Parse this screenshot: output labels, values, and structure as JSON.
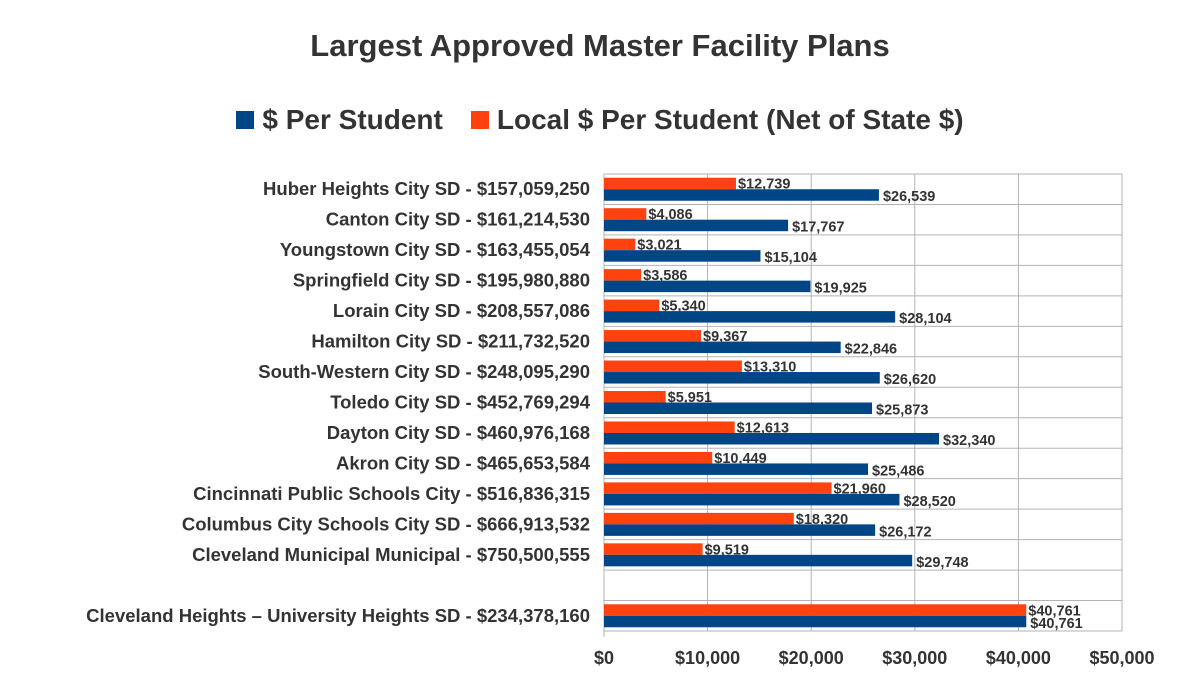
{
  "chart_data": {
    "type": "bar",
    "orientation": "horizontal",
    "title": "Largest Approved Master Facility Plans",
    "categories": [
      "Huber Heights City SD - $157,059,250",
      "Canton City SD - $161,214,530",
      "Youngstown City SD - $163,455,054",
      "Springfield City SD - $195,980,880",
      "Lorain City SD - $208,557,086",
      "Hamilton City SD - $211,732,520",
      "South-Western City SD - $248,095,290",
      "Toledo City SD - $452,769,294",
      "Dayton City SD - $460,976,168",
      "Akron City SD - $465,653,584",
      "Cincinnati Public Schools City - $516,836,315",
      "Columbus City Schools City SD - $666,913,532",
      "Cleveland Municipal Municipal - $750,500,555",
      "",
      "Cleveland Heights – University Heights SD - $234,378,160"
    ],
    "series": [
      {
        "name": "$ Per Student",
        "color": "#004586",
        "values": [
          26539,
          17767,
          15104,
          19925,
          28104,
          22846,
          26620,
          25873,
          32340,
          25486,
          28520,
          26172,
          29748,
          null,
          40761
        ],
        "labels": [
          "$26,539",
          "$17,767",
          "$15,104",
          "$19,925",
          "$28,104",
          "$22,846",
          "$26,620",
          "$25,873",
          "$32,340",
          "$25,486",
          "$28,520",
          "$26,172",
          "$29,748",
          "",
          "$40,761"
        ]
      },
      {
        "name": "Local $ Per Student (Net of State $)",
        "color": "#ff420e",
        "values": [
          12739,
          4086,
          3021,
          3586,
          5340,
          9367,
          13310,
          5951,
          12613,
          10449,
          21960,
          18320,
          9519,
          null,
          40761
        ],
        "labels": [
          "$12,739",
          "$4,086",
          "$3,021",
          "$3,586",
          "$5,340",
          "$9,367",
          "$13,310",
          "$5,951",
          "$12,613",
          "$10,449",
          "$21,960",
          "$18,320",
          "$9,519",
          "",
          "$40,761"
        ]
      }
    ],
    "xlim": [
      0,
      50000
    ],
    "xticks": [
      0,
      10000,
      20000,
      30000,
      40000,
      50000
    ],
    "xtick_labels": [
      "$0",
      "$10,000",
      "$20,000",
      "$30,000",
      "$40,000",
      "$50,000"
    ],
    "grid": true,
    "legend_position": "top"
  }
}
